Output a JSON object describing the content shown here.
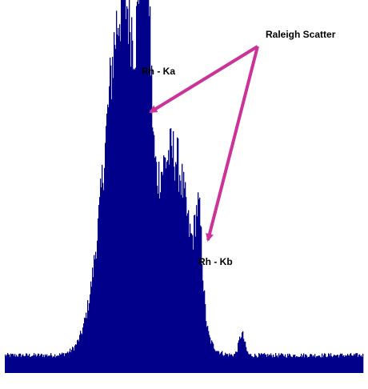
{
  "colors": {
    "fill": "#00008b",
    "arrow": "#cc3399",
    "background": "#ffffff"
  },
  "chart_data": {
    "type": "area",
    "x_range": [
      0,
      1
    ],
    "y_range": [
      0,
      1
    ],
    "annotations": {
      "raleigh_scatter": "Raleigh Scatter",
      "rh_ka": "Rh - Ka",
      "rh_kb": "Rh - Kb"
    },
    "peaks": [
      {
        "name": "",
        "center": 0.33,
        "width": 0.05,
        "height": 1.0
      },
      {
        "name": "Rh - Ka",
        "center": 0.39,
        "width": 0.012,
        "height": 0.8
      },
      {
        "name": "",
        "center": 0.47,
        "width": 0.045,
        "height": 0.55
      },
      {
        "name": "Rh - Kb",
        "center": 0.54,
        "width": 0.01,
        "height": 0.25
      },
      {
        "name": "",
        "center": 0.66,
        "width": 0.008,
        "height": 0.06
      }
    ],
    "baseline": 0.05
  }
}
